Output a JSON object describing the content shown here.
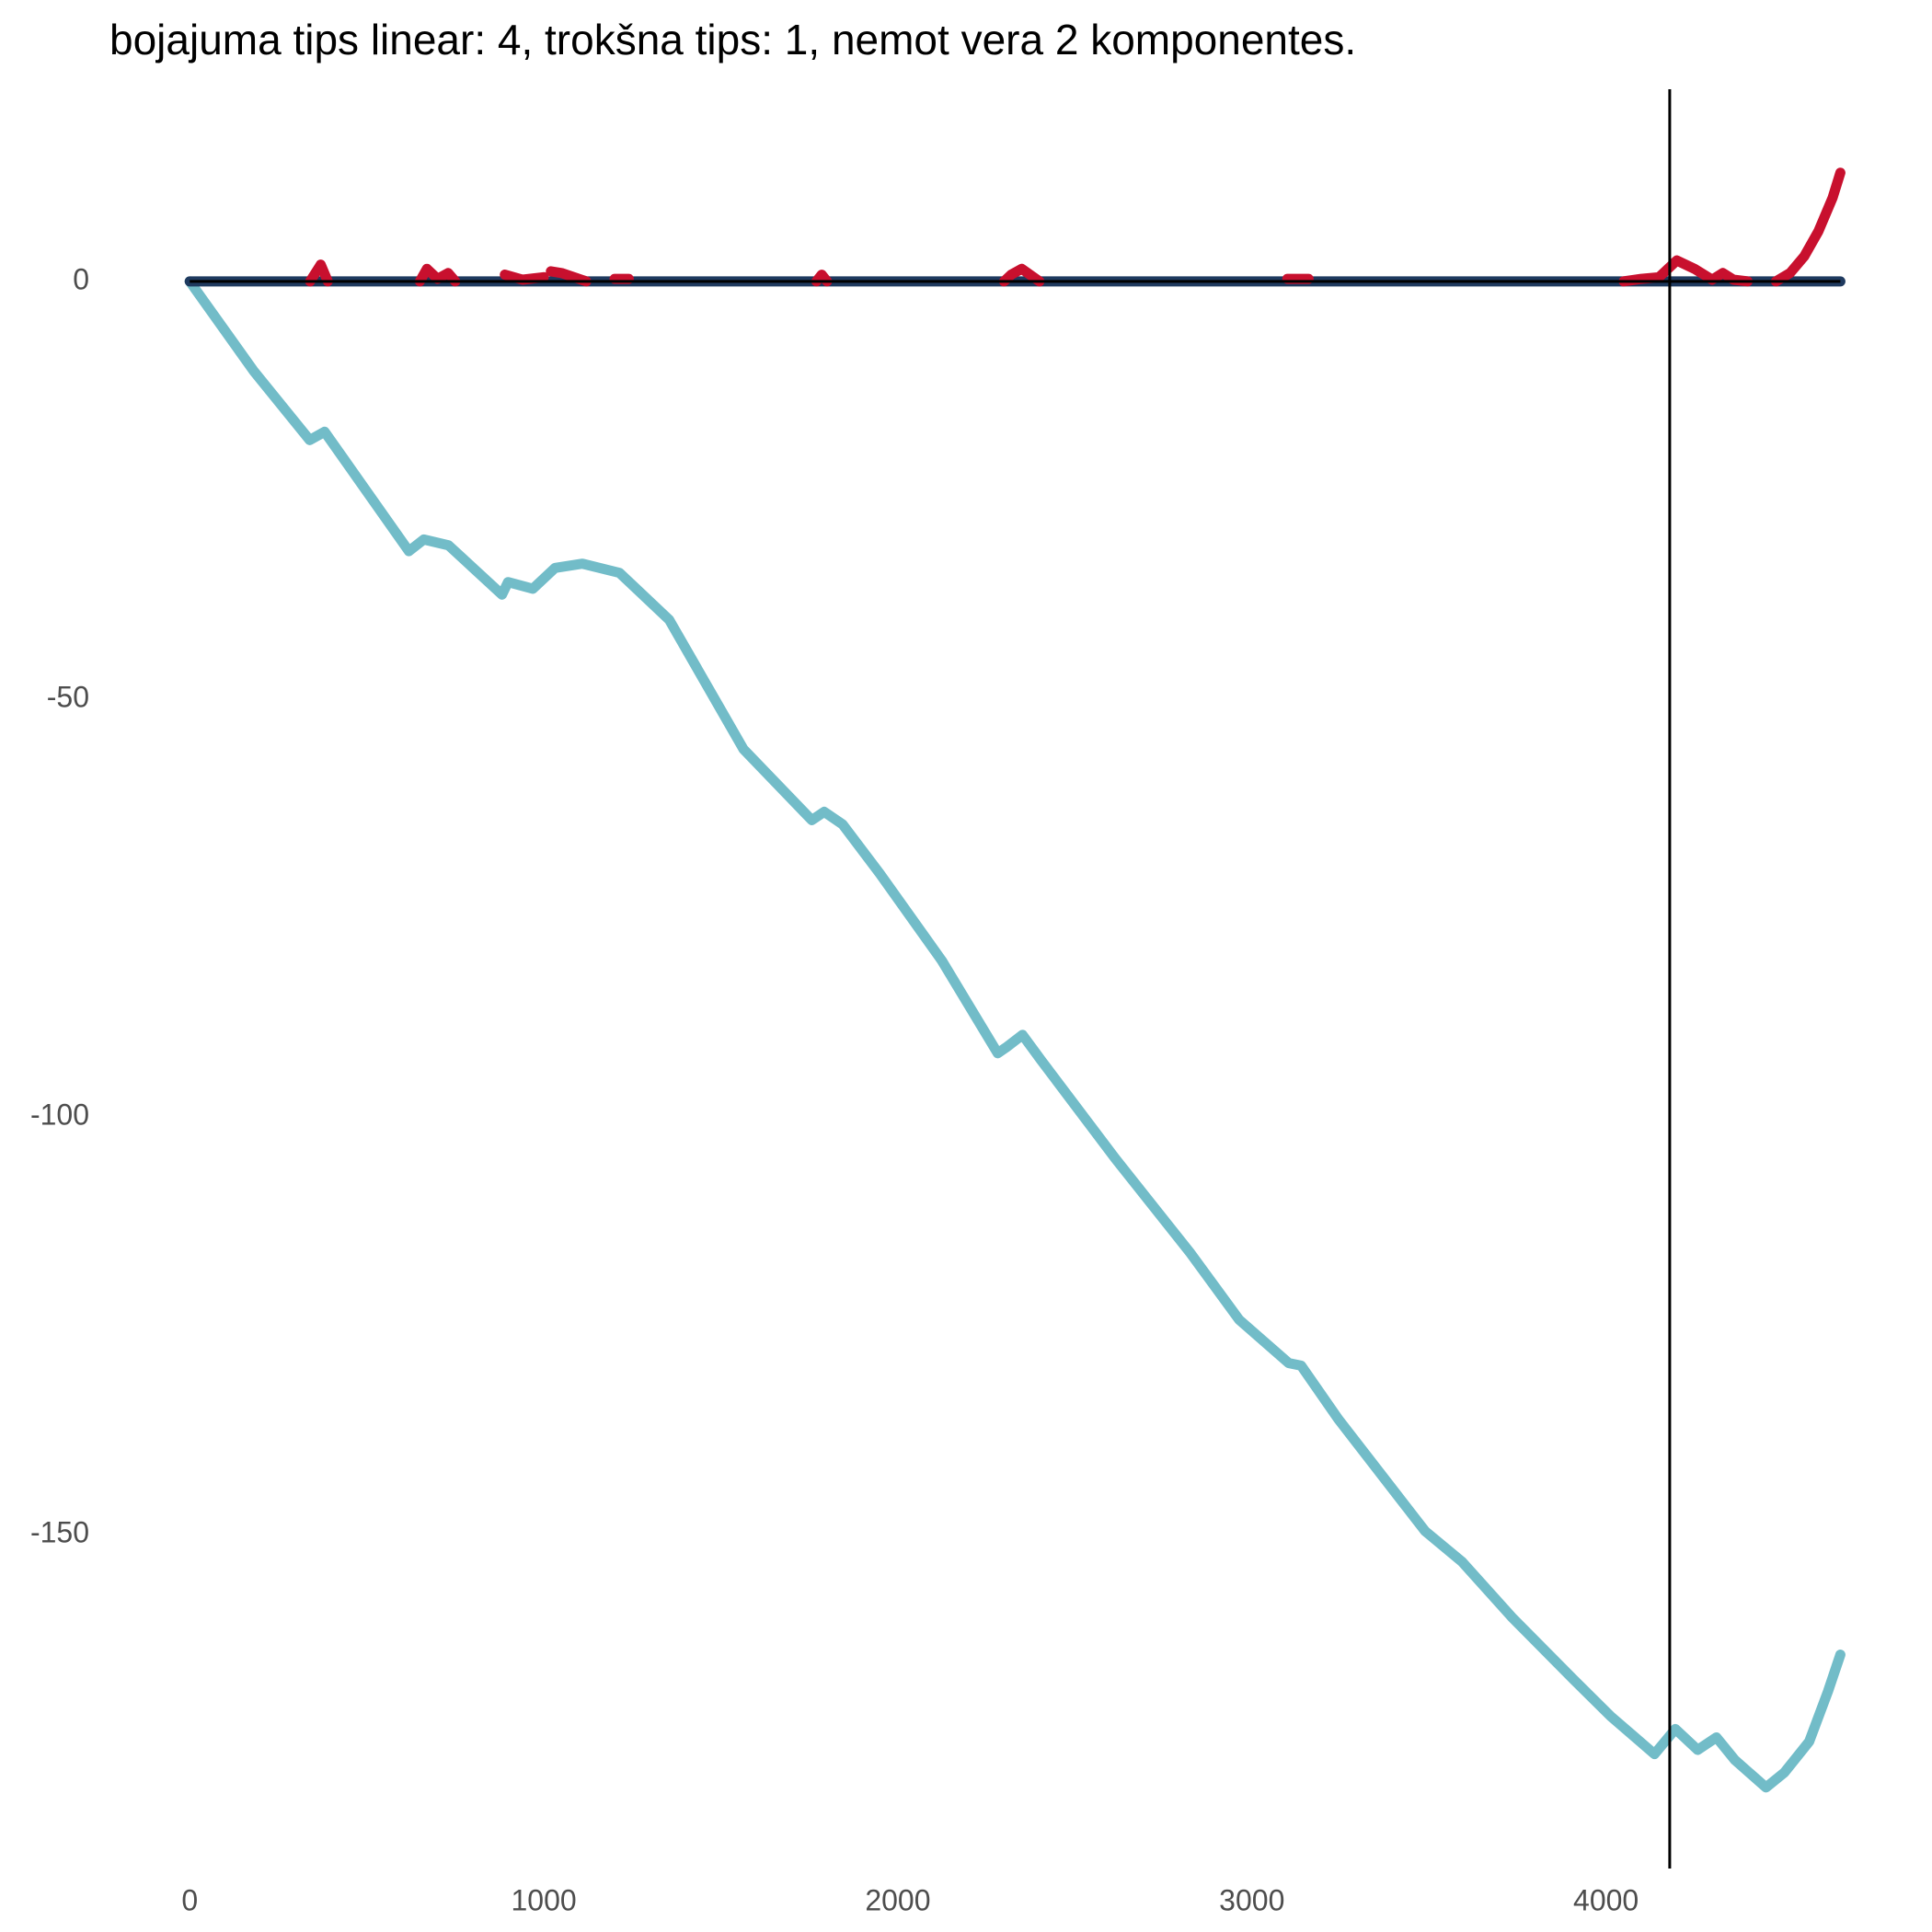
{
  "chart_data": {
    "type": "line",
    "title": "bojajuma tips linear: 4, trokšna tips: 1, nemot vera 2 komponentes.",
    "xlim": [
      -250,
      4900
    ],
    "ylim": [
      -190,
      23
    ],
    "xticks": [
      0,
      1000,
      2000,
      3000,
      4000
    ],
    "yticks": [
      0,
      -50,
      -100,
      -150
    ],
    "grid": false,
    "hline": 0,
    "vline": 4180,
    "series": [
      {
        "color": "#72bcc8",
        "x": [
          0,
          182,
          339,
          381,
          619,
          661,
          731,
          882,
          899,
          969,
          1032,
          1109,
          1214,
          1354,
          1564,
          1757,
          1792,
          1844,
          1949,
          2124,
          2282,
          2306,
          2352,
          2404,
          2614,
          2824,
          2964,
          3104,
          3139,
          3244,
          3489,
          3594,
          3734,
          3909,
          4014,
          4137,
          4196,
          4259,
          4312,
          4364,
          4452,
          4504,
          4574,
          4627,
          4662
        ],
        "values": [
          0,
          -10.8,
          -19,
          -18,
          -32.3,
          -30.9,
          -31.6,
          -37.5,
          -36,
          -36.8,
          -34.3,
          -33.8,
          -34.9,
          -40.5,
          -56,
          -64.5,
          -63.5,
          -65,
          -70.9,
          -81.3,
          -92.4,
          -91.7,
          -90.2,
          -93.2,
          -105,
          -116.2,
          -124.3,
          -129.5,
          -129.8,
          -136.2,
          -149.6,
          -153.3,
          -159.9,
          -167.4,
          -171.8,
          -176.3,
          -173.3,
          -175.8,
          -174.3,
          -177,
          -180.3,
          -178.5,
          -174.8,
          -168.8,
          -164.4
        ]
      },
      {
        "color": "#1f3a5f",
        "x": [
          0,
          4662
        ],
        "values": [
          0,
          0
        ]
      },
      {
        "color": "#c8102e",
        "x": [
          340,
          370,
          390,
          395,
          650,
          670,
          700,
          730,
          750,
          755,
          890,
          940,
          1000,
          1010,
          1020,
          1050,
          1120,
          1125,
          1200,
          1240,
          1245,
          1770,
          1785,
          1800,
          1805,
          2300,
          2320,
          2350,
          2400,
          2405,
          3100,
          3160,
          3165,
          4050,
          4100,
          4150,
          4200,
          4250,
          4300,
          4330,
          4360,
          4400,
          4405,
          4480,
          4520,
          4560,
          4600,
          4640,
          4662
        ],
        "values": [
          0,
          2,
          0,
          null,
          0,
          1.5,
          0.3,
          1,
          0,
          null,
          0.8,
          0.2,
          0.5,
          null,
          1.2,
          1,
          0,
          null,
          0.3,
          0.3,
          null,
          0,
          0.8,
          0,
          null,
          0,
          0.8,
          1.5,
          0,
          null,
          0.3,
          0.3,
          null,
          0,
          0.3,
          0.5,
          2.5,
          1.5,
          0.2,
          1,
          0.2,
          0,
          null,
          0,
          1,
          3,
          6,
          10,
          13
        ]
      }
    ]
  }
}
